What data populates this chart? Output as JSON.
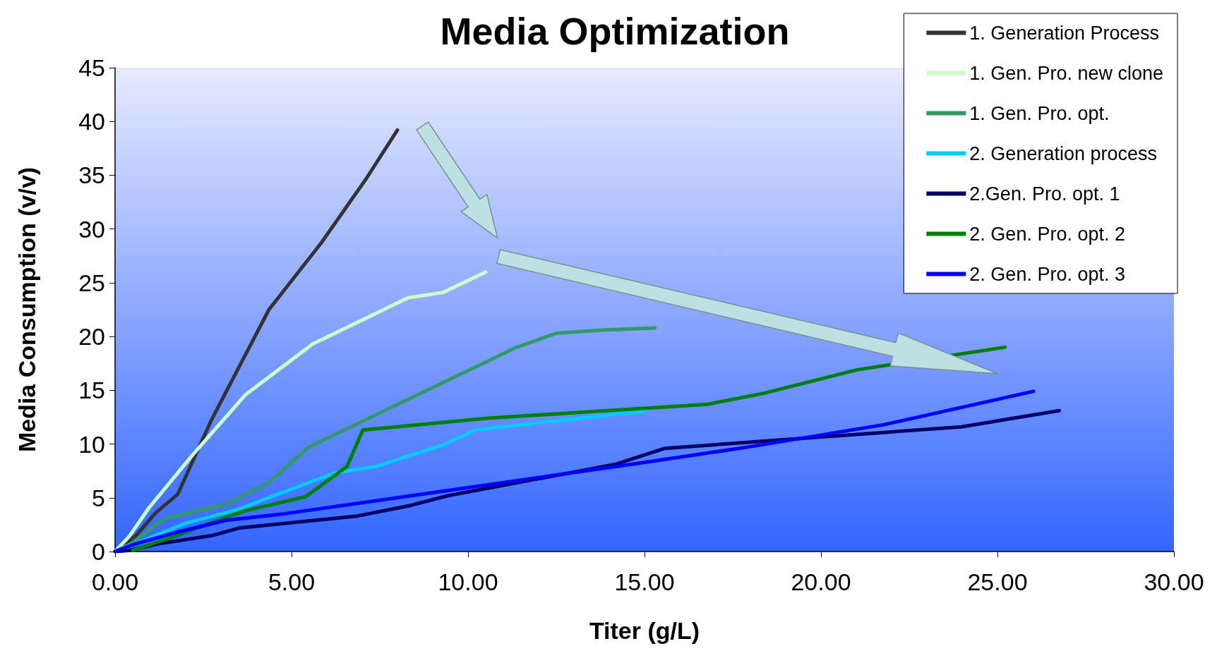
{
  "chart_data": {
    "type": "line",
    "title": "Media Optimization",
    "xlabel": "Titer (g/L)",
    "ylabel": "Media Consumption (v/v)",
    "xlim": [
      0,
      30
    ],
    "xticks": [
      {
        "value": 0,
        "label": "0.00"
      },
      {
        "value": 5,
        "label": "5.00"
      },
      {
        "value": 10,
        "label": "10.00"
      },
      {
        "value": 15,
        "label": "15.00"
      },
      {
        "value": 20,
        "label": "20.00"
      },
      {
        "value": 25,
        "label": "25.00"
      },
      {
        "value": 30,
        "label": "30.00"
      }
    ],
    "ylim": [
      0,
      45
    ],
    "yticks": [
      0,
      5,
      10,
      15,
      20,
      25,
      30,
      35,
      40,
      45
    ],
    "grid": false,
    "legend": "top right",
    "marker": "none",
    "line_style": "solid",
    "series": [
      {
        "name": "1. Generation Process",
        "color": "#333333",
        "x": [
          0,
          0.6,
          1.15,
          1.77,
          2.74,
          4.36,
          5.84,
          7.12,
          8.0
        ],
        "values": [
          0,
          1.5,
          3.6,
          5.3,
          12.3,
          22.5,
          28.7,
          34.7,
          39.2
        ]
      },
      {
        "name": "1. Gen. Pro. new clone",
        "color": "#ccffcc",
        "x": [
          0,
          0.4,
          0.97,
          2.2,
          3.7,
          5.6,
          8.3,
          9.3,
          10.5
        ],
        "values": [
          0,
          1.4,
          4.1,
          9.0,
          14.6,
          19.3,
          23.6,
          24.1,
          26.0
        ]
      },
      {
        "name": "1. Gen. Pro. opt.",
        "color": "#339966",
        "x": [
          0,
          0.5,
          1.36,
          3.22,
          4.39,
          5.48,
          11.38,
          12.5,
          13.8,
          15.3
        ],
        "values": [
          0,
          0.8,
          3.0,
          4.5,
          6.5,
          9.7,
          19.0,
          20.3,
          20.6,
          20.8
        ]
      },
      {
        "name": "2. Generation process",
        "color": "#00ccff",
        "x": [
          0.2,
          1.08,
          1.97,
          3.46,
          6.21,
          7.38,
          9.28,
          10.21,
          15.05
        ],
        "values": [
          0.3,
          1.4,
          2.6,
          3.9,
          7.3,
          7.9,
          9.9,
          11.3,
          13.1
        ]
      },
      {
        "name": "2.Gen. Pro. opt. 1",
        "color": "#000066",
        "x": [
          0,
          0.4,
          1.2,
          2.77,
          3.54,
          6.86,
          8.39,
          9.44,
          14.16,
          15.58,
          23.98,
          26.75
        ],
        "values": [
          0,
          0.1,
          0.7,
          1.5,
          2.2,
          3.3,
          4.3,
          5.2,
          8.1,
          9.6,
          11.6,
          13.1
        ]
      },
      {
        "name": "2. Gen. Pro. opt. 2",
        "color": "#008000",
        "x": [
          0.5,
          1.68,
          3.58,
          5.4,
          6.57,
          7.02,
          10.54,
          16.79,
          18.36,
          21.02,
          25.21
        ],
        "values": [
          0.1,
          1.4,
          3.7,
          5.1,
          7.9,
          11.3,
          12.4,
          13.7,
          14.7,
          16.9,
          19.0
        ]
      },
      {
        "name": "2. Gen. Pro. opt. 3",
        "color": "#0000ff",
        "x": [
          0,
          0.55,
          1.64,
          3.14,
          4.77,
          14.82,
          17.9,
          21.79,
          26.02
        ],
        "values": [
          0,
          0.7,
          1.7,
          2.9,
          3.5,
          8.2,
          9.7,
          11.8,
          14.9
        ]
      }
    ]
  }
}
